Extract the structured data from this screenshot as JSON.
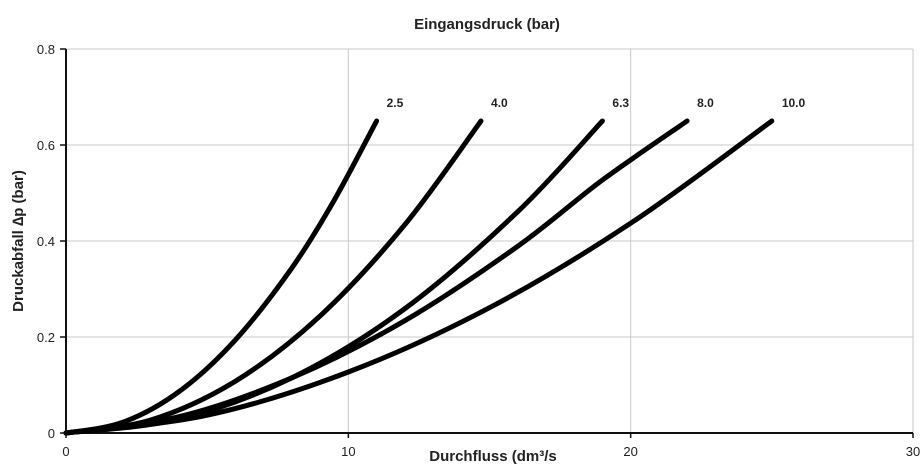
{
  "chart_data": {
    "type": "line",
    "title": "Eingangsdruck (bar)",
    "xlabel": "Durchfluss (dm³/s",
    "ylabel": "Druckabfall ∆p (bar)",
    "xlim": [
      0,
      30
    ],
    "ylim": [
      0,
      0.8
    ],
    "x_ticks": [
      0,
      10,
      20,
      30
    ],
    "x_tick_labels": [
      "0",
      "10",
      "20",
      "30"
    ],
    "y_ticks": [
      0,
      0.2,
      0.4,
      0.6,
      0.8
    ],
    "y_tick_labels": [
      "0",
      "0.2",
      "0.4",
      "0.6",
      "0.8"
    ],
    "grid": true,
    "legend": "none",
    "line_color": "#000000",
    "grid_color": "#c8c8c8",
    "series": [
      {
        "name": "2.5",
        "x": [
          0,
          2,
          4,
          6,
          8,
          9.5,
          11
        ],
        "y": [
          0,
          0.022,
          0.086,
          0.194,
          0.344,
          0.485,
          0.65
        ]
      },
      {
        "name": "4.0",
        "x": [
          0,
          3,
          6,
          9,
          12,
          14.7
        ],
        "y": [
          0,
          0.027,
          0.108,
          0.244,
          0.434,
          0.65
        ]
      },
      {
        "name": "6.3",
        "x": [
          0,
          4,
          8,
          12,
          16,
          19
        ],
        "y": [
          0,
          0.029,
          0.115,
          0.259,
          0.461,
          0.65
        ]
      },
      {
        "name": "8.0",
        "x": [
          0,
          4,
          8,
          12,
          16,
          19,
          22
        ],
        "y": [
          0,
          0.034,
          0.115,
          0.234,
          0.389,
          0.527,
          0.65
        ]
      },
      {
        "name": "10.0",
        "x": [
          0,
          5,
          10,
          15,
          20,
          25
        ],
        "y": [
          0,
          0.037,
          0.127,
          0.261,
          0.437,
          0.65
        ]
      }
    ]
  }
}
